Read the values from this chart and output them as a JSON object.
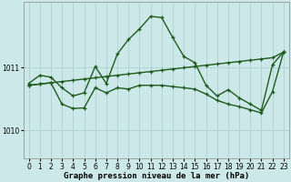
{
  "background_color": "#cde8e8",
  "line_color": "#1e5c1e",
  "grid_color": "#a8cccc",
  "xlabel": "Graphe pression niveau de la mer (hPa)",
  "xlim_min": -0.5,
  "xlim_max": 23.5,
  "ylim_min": 1009.55,
  "ylim_max": 1012.05,
  "yticks": [
    1010,
    1011
  ],
  "xtick_labels": [
    "0",
    "1",
    "2",
    "3",
    "4",
    "5",
    "6",
    "7",
    "8",
    "9",
    "10",
    "11",
    "12",
    "13",
    "14",
    "15",
    "16",
    "17",
    "18",
    "19",
    "20",
    "21",
    "22",
    "23"
  ],
  "s1": [
    1010.75,
    1010.88,
    1010.85,
    1010.68,
    1010.55,
    1010.6,
    1011.02,
    1010.75,
    1011.22,
    1011.45,
    1011.62,
    1011.82,
    1011.8,
    1011.48,
    1011.18,
    1011.08,
    1010.72,
    1010.55,
    1010.65,
    1010.52,
    1010.42,
    1010.32,
    1011.05,
    1011.25
  ],
  "s2": [
    1010.72,
    1010.74,
    1010.76,
    1010.78,
    1010.8,
    1010.82,
    1010.84,
    1010.86,
    1010.88,
    1010.9,
    1010.92,
    1010.94,
    1010.96,
    1010.98,
    1011.0,
    1011.02,
    1011.04,
    1011.06,
    1011.08,
    1011.1,
    1011.12,
    1011.14,
    1011.16,
    1011.25
  ],
  "s3": [
    1010.72,
    1010.74,
    1010.76,
    1010.42,
    1010.35,
    1010.36,
    1010.68,
    1010.6,
    1010.68,
    1010.66,
    1010.72,
    1010.72,
    1010.72,
    1010.7,
    1010.68,
    1010.66,
    1010.58,
    1010.48,
    1010.42,
    1010.38,
    1010.33,
    1010.28,
    1010.62,
    1011.25
  ],
  "linewidth": 1.0,
  "markersize": 3.5,
  "tick_fontsize": 5.5,
  "label_fontsize": 6.5
}
